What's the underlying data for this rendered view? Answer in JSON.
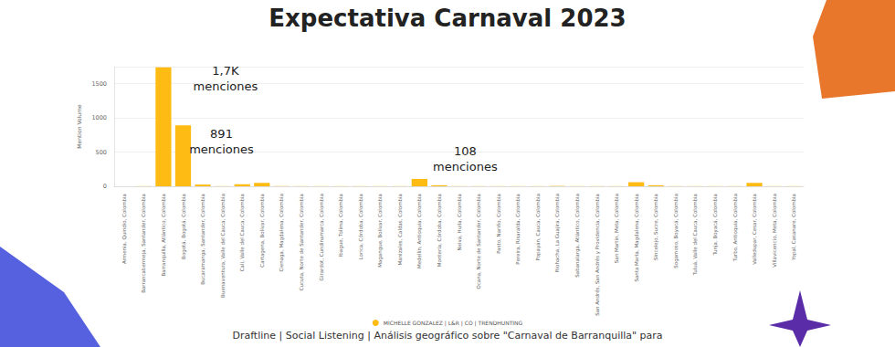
{
  "chart_data": {
    "type": "bar",
    "title": "Expectativa Carnaval 2023",
    "y_label": "Mention Volume",
    "footer": "Draftline | Social Listening | Análisis geográfico sobre \"Carnaval de Barranquilla\" para",
    "categories": [
      "Armenia, Quindío, Colombia",
      "Barrancabermeja, Santander, Colombia",
      "Barranquilla, Atlántico, Colombia",
      "Bogotá, Bogotá, Colombia",
      "Bucaramanga, Santander, Colombia",
      "Buenaventura, Valle del Cauca, Colombia",
      "Cali, Valle del Cauca, Colombia",
      "Cartagena, Bolívar, Colombia",
      "Cienaga, Magdalena, Colombia",
      "Cucuta, Norte de Santander, Colombia",
      "Girardot, Cundinamarca, Colombia",
      "Ibague, Tolima, Colombia",
      "Lorica, Córdoba, Colombia",
      "Magangue, Bolívar, Colombia",
      "Manizales, Caldas, Colombia",
      "Medellín, Antioquia, Colombia",
      "Montería, Córdoba, Colombia",
      "Neiva, Huila, Colombia",
      "Ocana, Norte de Santander, Colombia",
      "Pasto, Nariño, Colombia",
      "Pereira, Risaralda, Colombia",
      "Popayán, Cauca, Colombia",
      "Riohacha, La Guajira, Colombia",
      "Sabanalarga, Atlántico, Colombia",
      "San Andrés, San Andrés y Providencia, Colombia",
      "San Martín, Meta, Colombia",
      "Santa Marta, Magdalena, Colombia",
      "Sincelejo, Sucre, Colombia",
      "Sogamoso, Boyacá, Colombia",
      "Tuluá, Valle del Cauca, Colombia",
      "Tunja, Boyacá, Colombia",
      "Turbo, Antioquia, Colombia",
      "Valledupar, Cesar, Colombia",
      "Villavicencio, Meta, Colombia",
      "Yopal, Casanare, Colombia"
    ],
    "series": [
      {
        "name": "MICHELLE GONZALEZ | L&R | CO | TRENDHUNTING",
        "color": "#fdbb13",
        "values": [
          1,
          2,
          1740,
          891,
          25,
          2,
          30,
          50,
          3,
          2,
          2,
          2,
          2,
          2,
          2,
          108,
          15,
          2,
          2,
          2,
          2,
          2,
          5,
          2,
          2,
          2,
          60,
          15,
          2,
          2,
          2,
          2,
          50,
          2,
          2
        ]
      }
    ],
    "annotations": [
      {
        "text": "1,7K menciones",
        "category": "Barranquilla, Atlántico, Colombia"
      },
      {
        "text": "891 menciones",
        "category": "Bogotá, Bogotá, Colombia"
      },
      {
        "text": "108 menciones",
        "category": "Medellín, Antioquia, Colombia"
      }
    ],
    "ylim": [
      0,
      1750
    ],
    "yticks": [
      0,
      500,
      1000,
      1500
    ],
    "grid": true,
    "legend": "bottom"
  }
}
